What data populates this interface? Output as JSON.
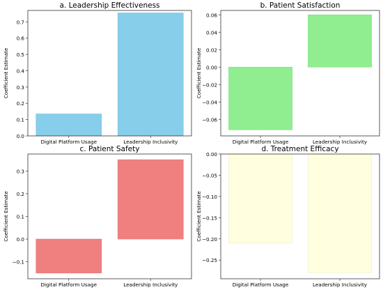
{
  "chart_data": [
    {
      "type": "bar",
      "title": "a. Leadership Effectiveness",
      "categories": [
        "Digital Platform Usage",
        "Leadership Inclusivity"
      ],
      "values": [
        0.135,
        0.755
      ],
      "ylabel": "Coefficient Estimate",
      "xlabel": "",
      "ylim": [
        0,
        0.77
      ],
      "yticks": [
        0.0,
        0.1,
        0.2,
        0.3,
        0.4,
        0.5,
        0.6,
        0.7
      ],
      "ytick_labels": [
        "0.0",
        "0.1",
        "0.2",
        "0.3",
        "0.4",
        "0.5",
        "0.6",
        "0.7"
      ],
      "color": "#87CEEB",
      "grid": false,
      "legend": "none"
    },
    {
      "type": "bar",
      "title": "b. Patient Satisfaction",
      "categories": [
        "Digital Platform Usage",
        "Leadership Inclusivity"
      ],
      "values": [
        -0.072,
        0.06
      ],
      "ylabel": "Coefficient Estimate",
      "xlabel": "",
      "ylim": [
        -0.079,
        0.065
      ],
      "yticks": [
        -0.06,
        -0.04,
        -0.02,
        0.0,
        0.02,
        0.04,
        0.06
      ],
      "ytick_labels": [
        "−0.06",
        "−0.04",
        "−0.02",
        "0.00",
        "0.02",
        "0.04",
        "0.06"
      ],
      "color": "#90EE90",
      "grid": false,
      "legend": "none"
    },
    {
      "type": "bar",
      "title": "c. Patient Safety",
      "categories": [
        "Digital Platform Usage",
        "Leadership Inclusivity"
      ],
      "values": [
        -0.15,
        0.35
      ],
      "ylabel": "Coefficient Estimate",
      "xlabel": "",
      "ylim": [
        -0.175,
        0.375
      ],
      "yticks": [
        -0.1,
        0.0,
        0.1,
        0.2,
        0.3
      ],
      "ytick_labels": [
        "−0.1",
        "0.0",
        "0.1",
        "0.2",
        "0.3"
      ],
      "color": "#F08080",
      "grid": false,
      "legend": "none"
    },
    {
      "type": "bar",
      "title": "d. Treatment Efficacy",
      "categories": [
        "Digital Platform Usage",
        "Leadership Inclusivity"
      ],
      "values": [
        -0.21,
        -0.28
      ],
      "ylabel": "Coefficient Estimate",
      "xlabel": "",
      "ylim": [
        -0.294,
        0.0
      ],
      "yticks": [
        -0.25,
        -0.2,
        -0.15,
        -0.1,
        -0.05,
        0.0
      ],
      "ytick_labels": [
        "−0.25",
        "−0.20",
        "−0.15",
        "−0.10",
        "−0.05",
        "0.00"
      ],
      "color": "#FFFFE0",
      "grid": false,
      "legend": "none"
    }
  ]
}
